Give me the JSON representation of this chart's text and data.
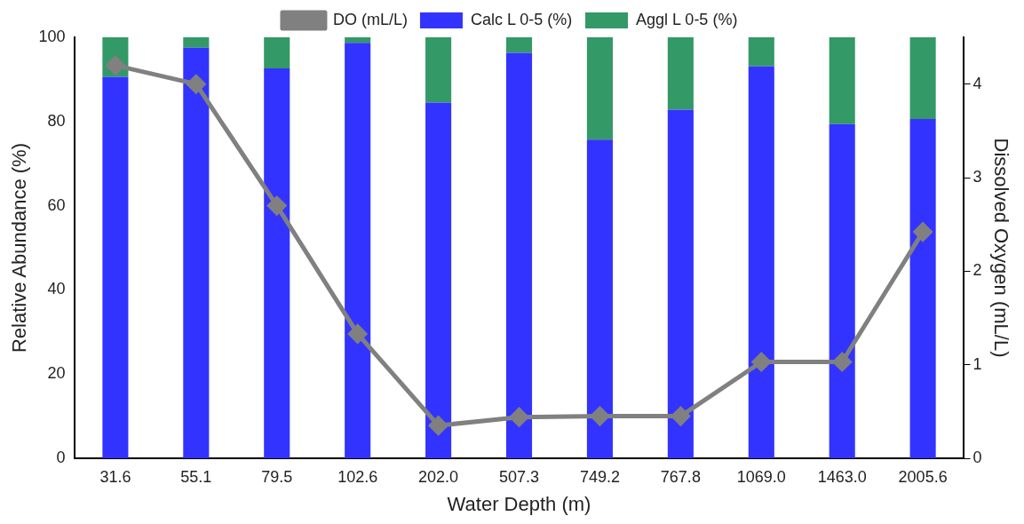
{
  "chart_data": {
    "type": "bar",
    "xlabel": "Water Depth (m)",
    "ylabel": "Relative Abundance (%)",
    "y2label": "Dissolved Oxygen (mL/L)",
    "categories": [
      "31.6",
      "55.1",
      "79.5",
      "102.6",
      "202.0",
      "507.3",
      "749.2",
      "767.8",
      "1069.0",
      "1463.0",
      "2005.6"
    ],
    "stacked": true,
    "series": [
      {
        "name": "Calc L 0-5 (%)",
        "color": "#3333ff",
        "values": [
          90.6,
          97.5,
          92.6,
          98.7,
          84.5,
          96.3,
          75.7,
          82.8,
          93.1,
          79.4,
          80.6
        ]
      },
      {
        "name": "Aggl L 0-5 (%)",
        "color": "#339966",
        "values": [
          9.4,
          2.5,
          7.4,
          1.3,
          15.5,
          3.7,
          24.3,
          17.2,
          6.9,
          20.6,
          19.4
        ]
      },
      {
        "name": "DO (mL/L)",
        "type": "line",
        "axis": "y2",
        "color": "#808080",
        "marker": "diamond",
        "values": [
          4.2,
          4.0,
          2.7,
          1.33,
          0.35,
          0.44,
          0.45,
          0.45,
          1.03,
          1.03,
          2.42
        ]
      }
    ],
    "ylim": [
      0,
      100
    ],
    "yticks": [
      0,
      20,
      40,
      60,
      80,
      100
    ],
    "y2lim": [
      0,
      4.5
    ],
    "y2ticks": [
      0,
      1,
      2,
      3,
      4
    ],
    "grid": false,
    "legend": "top"
  }
}
